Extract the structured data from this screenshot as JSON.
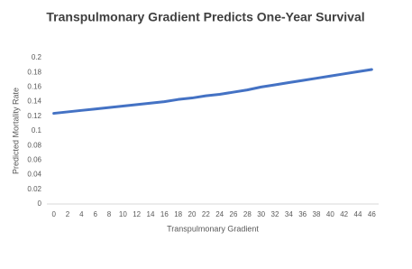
{
  "chart_data": {
    "type": "line",
    "title": "Transpulmonary Gradient Predicts One-Year Survival",
    "x_label": "Transpulmonary Gradient",
    "y_label": "Predicted Mortality Rate",
    "categories": [
      0,
      2,
      4,
      6,
      8,
      10,
      12,
      14,
      16,
      18,
      20,
      22,
      24,
      26,
      28,
      30,
      32,
      34,
      36,
      38,
      40,
      42,
      44,
      46
    ],
    "series": [
      {
        "name": "Predicted Mortality Rate",
        "color": "#4472c4",
        "values": [
          0.124,
          0.126,
          0.128,
          0.13,
          0.132,
          0.134,
          0.136,
          0.138,
          0.14,
          0.143,
          0.145,
          0.148,
          0.15,
          0.153,
          0.156,
          0.16,
          0.163,
          0.166,
          0.169,
          0.172,
          0.175,
          0.178,
          0.181,
          0.184
        ]
      }
    ],
    "ylim": [
      0,
      0.2
    ],
    "yticks": [
      0,
      0.02,
      0.04,
      0.06,
      0.08,
      0.1,
      0.12,
      0.14,
      0.16,
      0.18,
      0.2
    ],
    "grid": false,
    "legend": false
  }
}
